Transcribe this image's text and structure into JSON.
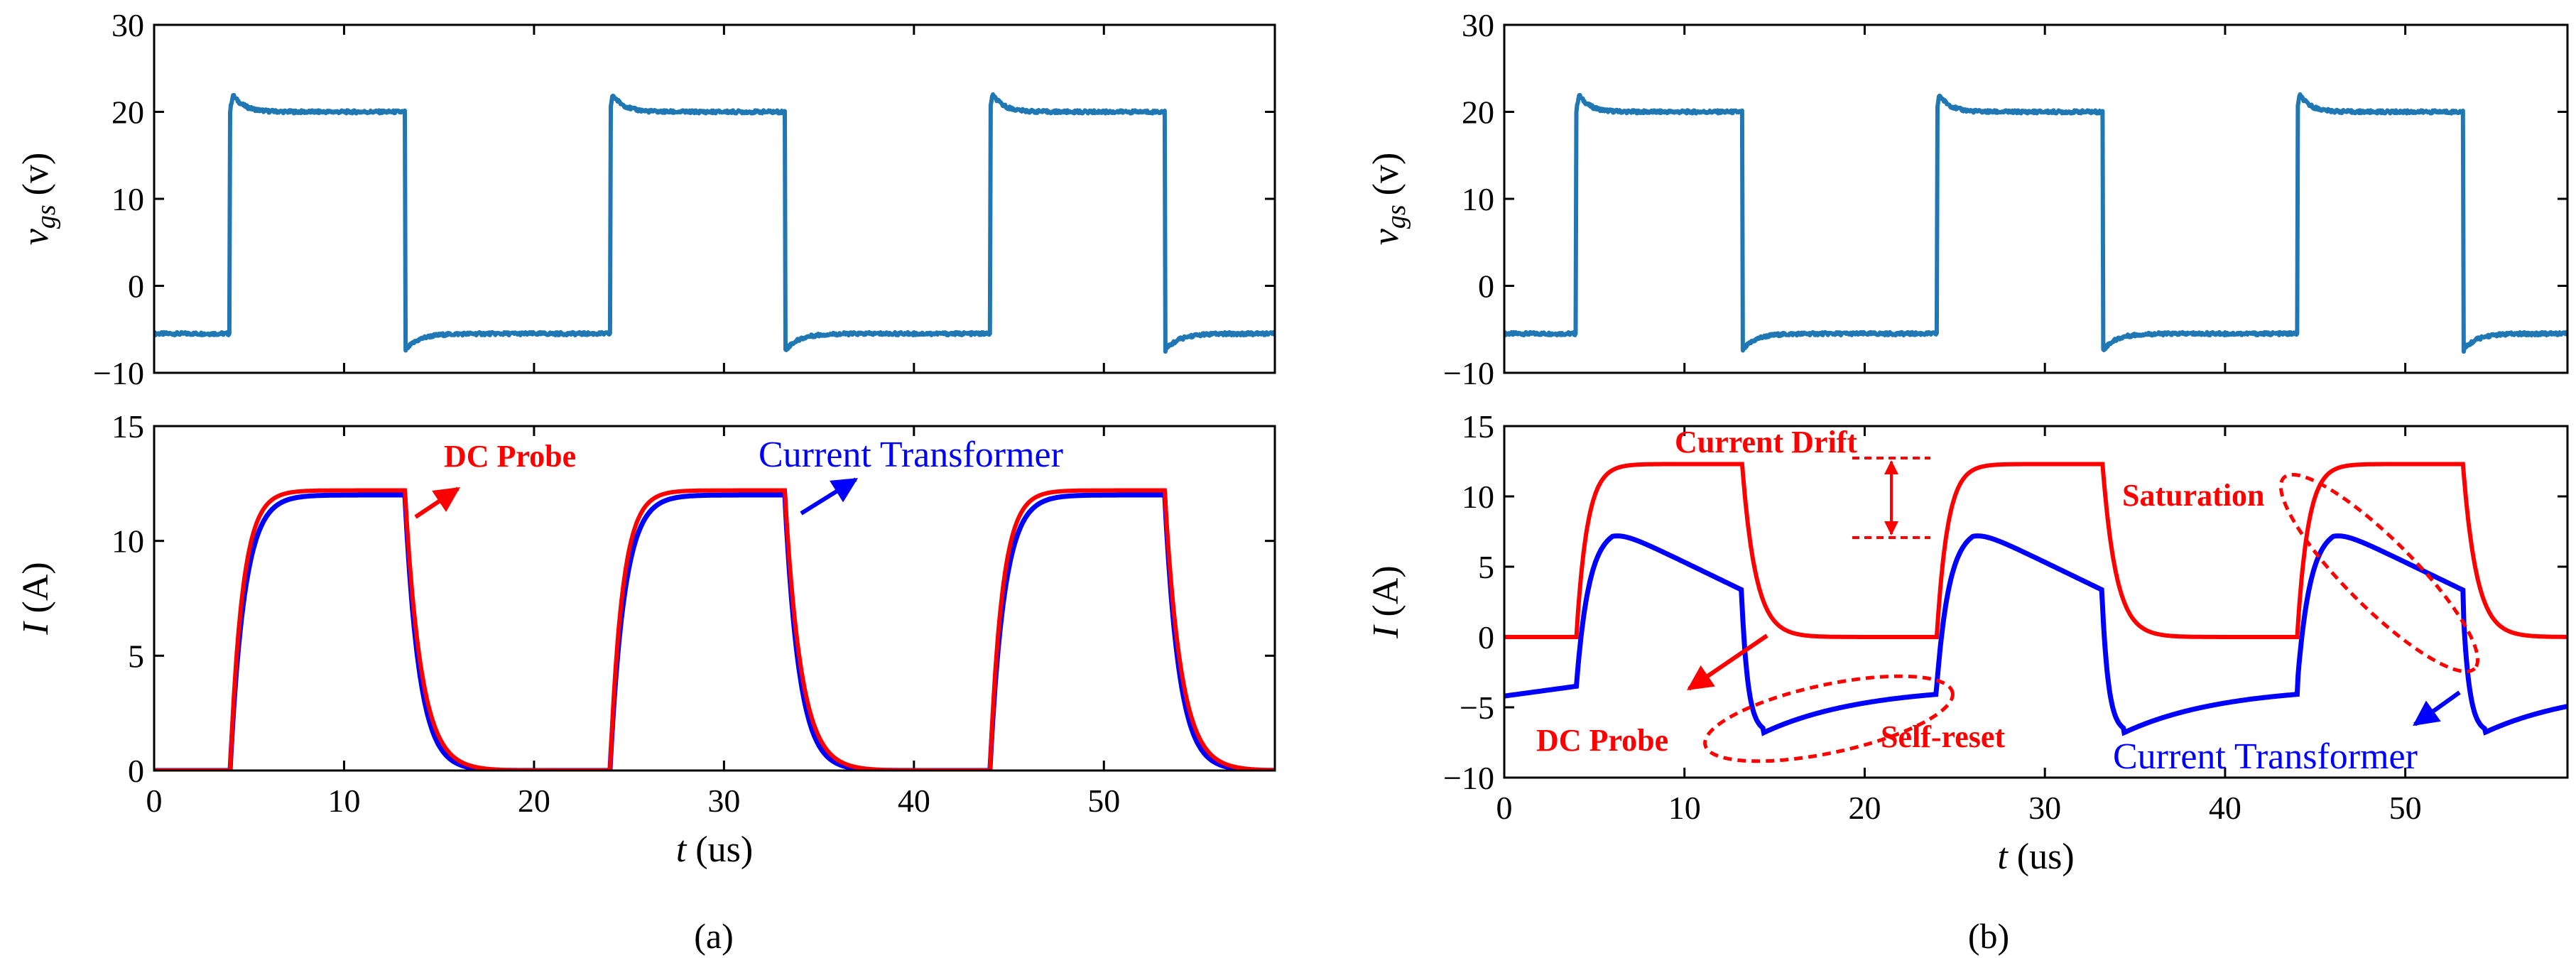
{
  "colors": {
    "vgs": "#1f77b4",
    "dc_probe": "#ff0000",
    "ct": "#0000ff",
    "axis": "#000000"
  },
  "chart_data": [
    {
      "id": "a-top",
      "type": "line",
      "ylabel_main": "v",
      "ylabel_sub": "gs",
      "ylabel_unit": " (v)",
      "xlim": [
        0,
        59
      ],
      "ylim": [
        -10,
        30
      ],
      "yticks": [
        "30",
        "20",
        "10",
        "0",
        "−10"
      ],
      "ytick_values": [
        30,
        20,
        10,
        0,
        -10
      ],
      "series": [
        {
          "name": "vgs",
          "high": 20,
          "low": -5.5,
          "overshoot": 22.5,
          "undershoot": -7.5,
          "rise": [
            4,
            24,
            44
          ],
          "fall": [
            13.2,
            33.2,
            53.2
          ]
        }
      ]
    },
    {
      "id": "a-bottom",
      "type": "line",
      "ylabel_main": "I",
      "ylabel_unit": " (A)",
      "xlabel_main": "t",
      "xlabel_unit": " (us)",
      "xlim": [
        0,
        59
      ],
      "ylim": [
        0,
        15
      ],
      "yticks": [
        "15",
        "10",
        "5",
        "0"
      ],
      "ytick_values": [
        15,
        10,
        5,
        0
      ],
      "xticks": [
        "0",
        "10",
        "20",
        "30",
        "40",
        "50"
      ],
      "xtick_values": [
        0,
        10,
        20,
        30,
        40,
        50
      ],
      "series": [
        {
          "name": "DC Probe",
          "peak": 12.2,
          "rise": [
            4,
            24,
            44
          ],
          "fall": [
            13.2,
            33.2,
            53.2
          ]
        },
        {
          "name": "Current Transformer",
          "peak": 12.0,
          "rise": [
            4,
            24,
            44
          ],
          "fall": [
            13.2,
            33.2,
            53.2
          ]
        }
      ],
      "annotations": [
        "DC Probe",
        "Current Transformer"
      ],
      "caption": "(a)"
    },
    {
      "id": "b-top",
      "type": "line",
      "ylabel_main": "v",
      "ylabel_sub": "gs",
      "ylabel_unit": " (v)",
      "xlim": [
        0,
        59
      ],
      "ylim": [
        -10,
        30
      ],
      "yticks": [
        "30",
        "20",
        "10",
        "0",
        "−10"
      ],
      "ytick_values": [
        30,
        20,
        10,
        0,
        -10
      ],
      "series": [
        {
          "name": "vgs",
          "high": 20,
          "low": -5.5,
          "overshoot": 22.5,
          "undershoot": -7.5,
          "rise": [
            4,
            24,
            44
          ],
          "fall": [
            13.2,
            33.2,
            53.2
          ]
        }
      ]
    },
    {
      "id": "b-bottom",
      "type": "line",
      "ylabel_main": "I",
      "ylabel_unit": " (A)",
      "xlabel_main": "t",
      "xlabel_unit": " (us)",
      "xlim": [
        0,
        59
      ],
      "ylim": [
        -10,
        15
      ],
      "yticks": [
        "15",
        "10",
        "5",
        "0",
        "−5",
        "−10"
      ],
      "ytick_values": [
        15,
        10,
        5,
        0,
        -5,
        -10
      ],
      "xticks": [
        "0",
        "10",
        "20",
        "30",
        "40",
        "50"
      ],
      "xtick_values": [
        0,
        10,
        20,
        30,
        40,
        50
      ],
      "series": [
        {
          "name": "DC Probe",
          "peak": 12.3,
          "rise": [
            4,
            24,
            44
          ],
          "fall": [
            13.2,
            33.2,
            53.2
          ]
        },
        {
          "name": "Current Transformer",
          "peak": 7.8,
          "low": -6.8,
          "rise": [
            4,
            24,
            44
          ],
          "fall": [
            13.2,
            33.2,
            53.2
          ]
        }
      ],
      "annotations": [
        "Current Drift",
        "Saturation",
        "DC Probe",
        "Self-reset",
        "Current Transformer"
      ],
      "caption": "(b)"
    }
  ],
  "labels": {
    "a_dc_probe": "DC Probe",
    "a_ct": "Current Transformer",
    "b_current_drift": "Current Drift",
    "b_saturation": "Saturation",
    "b_dc_probe": "DC Probe",
    "b_self_reset": "Self-reset",
    "b_ct": "Current Transformer",
    "caption_a": "(a)",
    "caption_b": "(b)"
  }
}
